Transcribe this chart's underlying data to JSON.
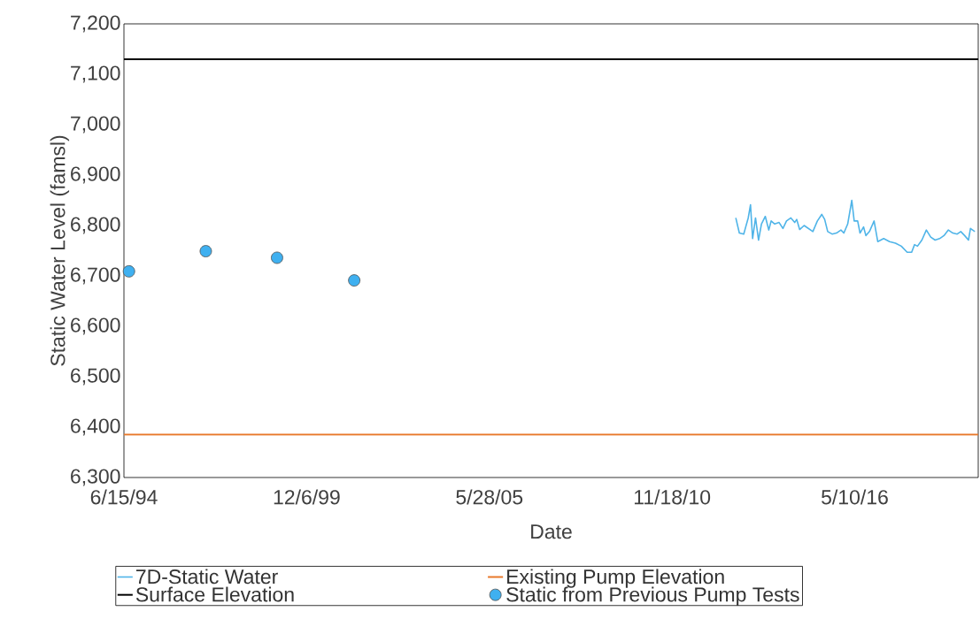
{
  "chart_data": {
    "type": "line",
    "xlabel": "Date",
    "ylabel": "Static Water Level (famsl)",
    "xlim": [
      "1994-06-15",
      "2020-01-22"
    ],
    "ylim": [
      6300,
      7200
    ],
    "xticks": [
      {
        "value": "1994-06-15",
        "label": "6/15/94"
      },
      {
        "value": "1999-12-06",
        "label": "12/6/99"
      },
      {
        "value": "2005-05-28",
        "label": "5/28/05"
      },
      {
        "value": "2010-11-18",
        "label": "11/18/10"
      },
      {
        "value": "2016-05-10",
        "label": "5/10/16"
      }
    ],
    "yticks": [
      {
        "value": 6300,
        "label": "6,300"
      },
      {
        "value": 6400,
        "label": "6,400"
      },
      {
        "value": 6500,
        "label": "6,500"
      },
      {
        "value": 6600,
        "label": "6,600"
      },
      {
        "value": 6700,
        "label": "6,700"
      },
      {
        "value": 6800,
        "label": "6,800"
      },
      {
        "value": 6900,
        "label": "6,900"
      },
      {
        "value": 7000,
        "label": "7,000"
      },
      {
        "value": 7100,
        "label": "7,100"
      },
      {
        "value": 7200,
        "label": "7,200"
      }
    ],
    "legend": "bottom",
    "series": [
      {
        "name": "7D-Static Water",
        "color": "#4fb4e8",
        "x": [
          "2012-10-16",
          "2012-11-24",
          "2013-01-11",
          "2013-03-01",
          "2013-03-26",
          "2013-04-18",
          "2013-05-20",
          "2013-06-22",
          "2013-07-24",
          "2013-09-04",
          "2013-10-12",
          "2013-11-07",
          "2013-12-16",
          "2014-02-02",
          "2014-03-16",
          "2014-04-24",
          "2014-06-11",
          "2014-07-23",
          "2014-08-14",
          "2014-09-15",
          "2014-11-03",
          "2014-12-21",
          "2015-02-07",
          "2015-03-28",
          "2015-05-15",
          "2015-06-16",
          "2015-07-19",
          "2015-09-05",
          "2015-10-23",
          "2015-12-11",
          "2016-01-12",
          "2016-02-23",
          "2016-04-08",
          "2016-05-04",
          "2016-06-11",
          "2016-07-07",
          "2016-08-15",
          "2016-09-09",
          "2016-10-18",
          "2016-12-08",
          "2017-01-17",
          "2017-03-23",
          "2017-05-26",
          "2017-07-30",
          "2017-10-02",
          "2017-12-05",
          "2018-01-23",
          "2018-02-24",
          "2018-03-28",
          "2018-05-15",
          "2018-07-03",
          "2018-08-20",
          "2018-10-07",
          "2018-11-25",
          "2019-01-12",
          "2019-03-01",
          "2019-04-19",
          "2019-06-06",
          "2019-07-15",
          "2019-08-26",
          "2019-10-07",
          "2019-10-29",
          "2019-12-16"
        ],
        "values": [
          6815,
          6785,
          6783,
          6815,
          6841,
          6774,
          6815,
          6771,
          6803,
          6818,
          6791,
          6809,
          6803,
          6806,
          6794,
          6809,
          6815,
          6806,
          6812,
          6792,
          6800,
          6794,
          6788,
          6809,
          6822,
          6812,
          6788,
          6783,
          6785,
          6791,
          6785,
          6803,
          6850,
          6809,
          6809,
          6785,
          6797,
          6780,
          6788,
          6809,
          6768,
          6774,
          6768,
          6765,
          6759,
          6747,
          6747,
          6762,
          6759,
          6771,
          6791,
          6777,
          6771,
          6774,
          6780,
          6791,
          6785,
          6783,
          6788,
          6780,
          6771,
          6794,
          6788
        ]
      },
      {
        "name": "Existing Pump Elevation",
        "color": "#e8782a",
        "x": [
          "1994-06-15",
          "2020-01-22"
        ],
        "values": [
          6385,
          6385
        ]
      },
      {
        "name": "Surface Elevation",
        "color": "#000000",
        "x": [
          "1994-06-15",
          "2020-01-22"
        ],
        "values": [
          7130,
          7130
        ]
      },
      {
        "name": "Static from Previous Pump Tests",
        "type": "scatter",
        "marker": "circle",
        "color": "#3fb0f0",
        "x": [
          "1994-08-09",
          "1996-11-27",
          "1999-01-16",
          "2001-05-10"
        ],
        "values": [
          6709,
          6749,
          6736,
          6691
        ]
      }
    ]
  }
}
